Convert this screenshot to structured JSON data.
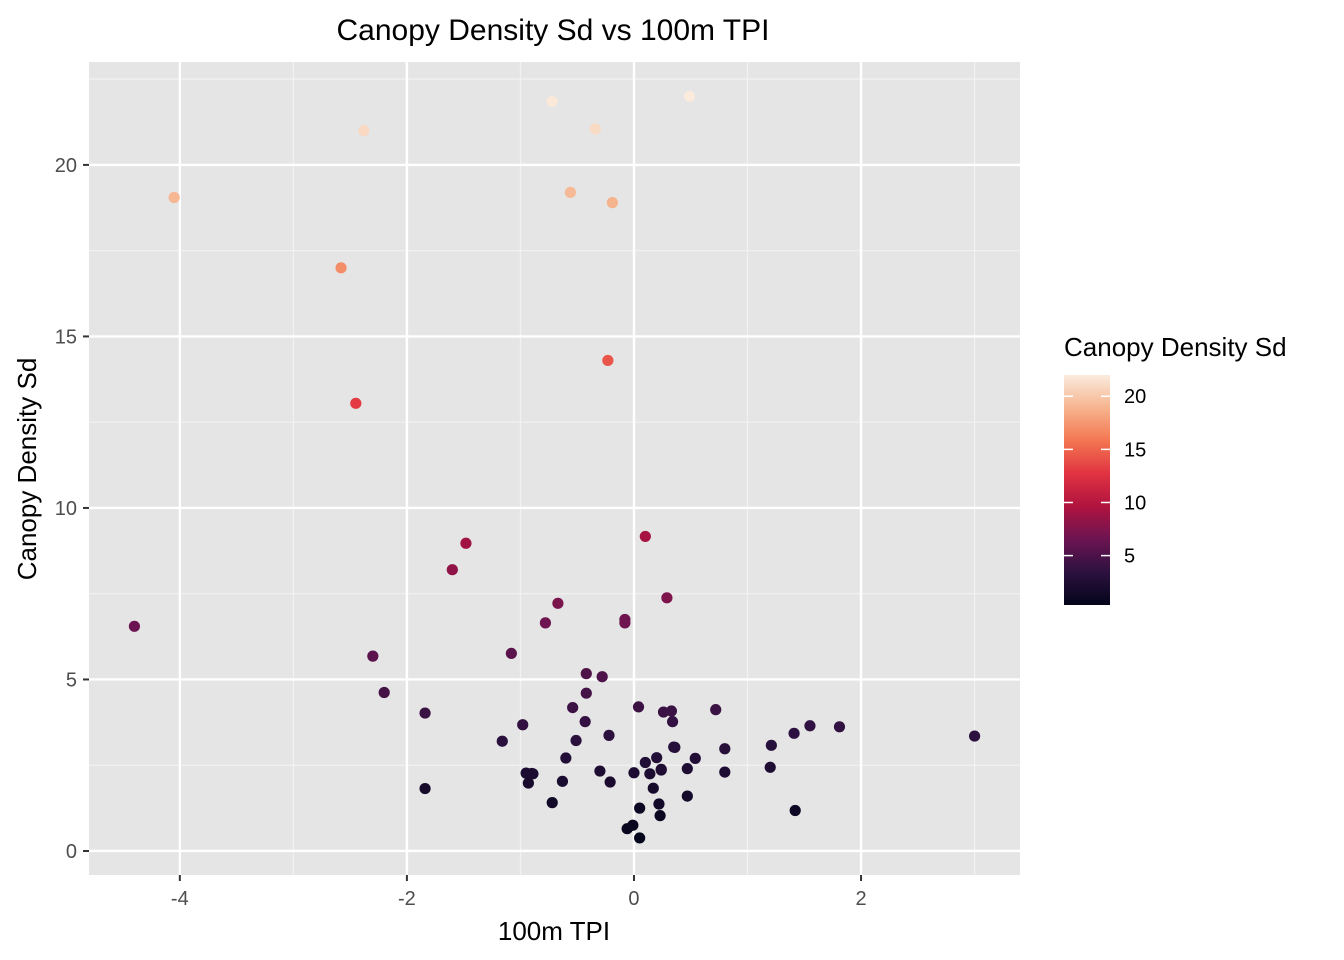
{
  "chart_data": {
    "type": "scatter",
    "title": "Canopy Density Sd vs 100m TPI",
    "xlabel": "100m TPI",
    "ylabel": "Canopy Density Sd",
    "xlim": [
      -4.8,
      3.4
    ],
    "ylim": [
      -0.7,
      23
    ],
    "xticks": [
      -4,
      -2,
      0,
      2
    ],
    "xtick_labels": [
      "-4",
      "-2",
      "0",
      "2"
    ],
    "yticks": [
      0,
      5,
      10,
      15,
      20
    ],
    "ytick_labels": [
      "0",
      "5",
      "10",
      "15",
      "20"
    ],
    "grid": true,
    "panel_background": "#e5e5e5",
    "grid_color": "#ffffff",
    "legend": {
      "title": "Canopy Density Sd",
      "placement": "right",
      "range": [
        0.35,
        22.0
      ],
      "ticks": [
        5,
        10,
        15,
        20
      ],
      "tick_labels": [
        "5",
        "10",
        "15",
        "20"
      ],
      "color_stops": [
        "#03051a",
        "#2d1140",
        "#6b1451",
        "#b0133f",
        "#e13342",
        "#f37651",
        "#f6b48e",
        "#faebdd"
      ]
    },
    "x": [
      -4.4,
      -4.05,
      -2.58,
      -2.45,
      -2.38,
      -2.3,
      -2.2,
      -1.84,
      -1.84,
      -1.6,
      -1.48,
      -1.16,
      -1.08,
      -0.98,
      -0.95,
      -0.93,
      -0.9,
      -0.89,
      -0.78,
      -0.72,
      -0.72,
      -0.67,
      -0.63,
      -0.6,
      -0.56,
      -0.54,
      -0.51,
      -0.43,
      -0.42,
      -0.42,
      -0.34,
      -0.3,
      -0.28,
      -0.23,
      -0.22,
      -0.21,
      -0.19,
      -0.08,
      -0.08,
      -0.06,
      -0.01,
      0.0,
      0.04,
      0.05,
      0.05,
      0.1,
      0.1,
      0.14,
      0.17,
      0.2,
      0.22,
      0.23,
      0.24,
      0.24,
      0.26,
      0.29,
      0.33,
      0.34,
      0.35,
      0.36,
      0.47,
      0.47,
      0.49,
      0.54,
      0.72,
      0.8,
      0.8,
      1.2,
      1.21,
      1.41,
      1.42,
      1.55,
      1.81,
      3.0
    ],
    "y": [
      6.55,
      19.05,
      17.0,
      13.05,
      21.0,
      5.68,
      4.62,
      4.02,
      1.82,
      8.2,
      8.97,
      3.2,
      5.76,
      3.68,
      2.27,
      1.98,
      2.26,
      2.25,
      6.65,
      1.41,
      21.85,
      7.22,
      2.03,
      2.71,
      19.2,
      4.18,
      3.22,
      3.77,
      4.6,
      5.17,
      21.05,
      2.33,
      5.08,
      14.3,
      3.37,
      2.01,
      18.9,
      6.75,
      6.65,
      0.65,
      0.75,
      2.28,
      4.2,
      1.25,
      0.38,
      9.17,
      2.58,
      2.25,
      1.83,
      2.72,
      1.37,
      1.03,
      2.36,
      2.38,
      4.05,
      7.38,
      4.08,
      3.77,
      3.03,
      3.02,
      2.4,
      1.6,
      22.0,
      2.7,
      4.12,
      2.98,
      2.3,
      2.44,
      3.08,
      3.43,
      1.18,
      3.65,
      3.62,
      3.35
    ]
  }
}
